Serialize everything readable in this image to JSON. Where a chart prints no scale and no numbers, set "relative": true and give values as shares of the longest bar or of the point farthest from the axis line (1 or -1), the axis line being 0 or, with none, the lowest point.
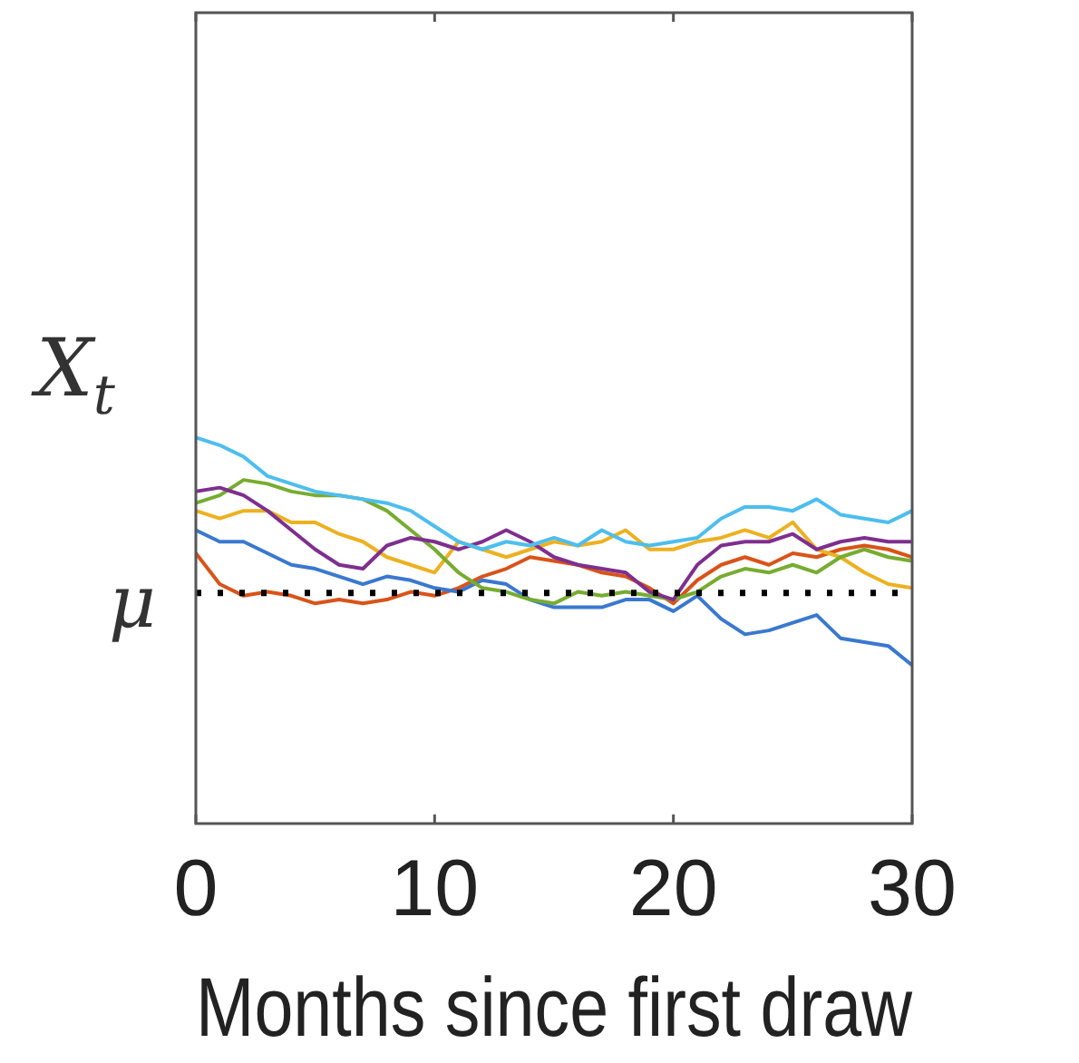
{
  "chart_data": {
    "type": "line",
    "relative": true,
    "ylabel": "X$_{t}$",
    "xlabel": "Months since first draw",
    "xlim": [
      0,
      30
    ],
    "xticks": [
      0,
      10,
      20,
      30
    ],
    "grid": false,
    "legend": false,
    "marker": "none",
    "line_style": "solid",
    "x": [
      0,
      1,
      2,
      3,
      4,
      5,
      6,
      7,
      8,
      9,
      10,
      11,
      12,
      13,
      14,
      15,
      16,
      17,
      18,
      19,
      20,
      21,
      22,
      23,
      24,
      25,
      26,
      27,
      28,
      29,
      30
    ],
    "ref_lines": [
      {
        "axis": "y",
        "value": 0.597,
        "label": "μ",
        "color": "#000000",
        "line_style": "dotted"
      }
    ],
    "series": [
      {
        "color": "#4dbeee",
        "values": [
          1.0,
          0.98,
          0.95,
          0.9,
          0.88,
          0.86,
          0.85,
          0.84,
          0.83,
          0.81,
          0.77,
          0.73,
          0.71,
          0.73,
          0.72,
          0.74,
          0.72,
          0.76,
          0.73,
          0.72,
          0.73,
          0.74,
          0.79,
          0.82,
          0.82,
          0.81,
          0.84,
          0.8,
          0.79,
          0.78,
          0.81
        ]
      },
      {
        "color": "#7e2f8e",
        "values": [
          0.86,
          0.87,
          0.85,
          0.81,
          0.76,
          0.71,
          0.67,
          0.66,
          0.72,
          0.74,
          0.73,
          0.71,
          0.73,
          0.76,
          0.73,
          0.69,
          0.67,
          0.66,
          0.65,
          0.6,
          0.58,
          0.67,
          0.72,
          0.73,
          0.73,
          0.75,
          0.71,
          0.73,
          0.74,
          0.73,
          0.73
        ]
      },
      {
        "color": "#77ac30",
        "values": [
          0.83,
          0.85,
          0.89,
          0.88,
          0.86,
          0.85,
          0.85,
          0.84,
          0.81,
          0.76,
          0.71,
          0.65,
          0.61,
          0.6,
          0.58,
          0.57,
          0.6,
          0.59,
          0.6,
          0.59,
          0.58,
          0.6,
          0.64,
          0.66,
          0.65,
          0.67,
          0.65,
          0.69,
          0.71,
          0.69,
          0.68
        ]
      },
      {
        "color": "#edb120",
        "values": [
          0.81,
          0.79,
          0.81,
          0.81,
          0.78,
          0.78,
          0.75,
          0.73,
          0.69,
          0.67,
          0.65,
          0.73,
          0.71,
          0.69,
          0.71,
          0.73,
          0.72,
          0.73,
          0.76,
          0.71,
          0.71,
          0.73,
          0.74,
          0.76,
          0.74,
          0.78,
          0.71,
          0.69,
          0.65,
          0.62,
          0.61
        ]
      },
      {
        "color": "#3a78d0",
        "values": [
          0.76,
          0.73,
          0.73,
          0.7,
          0.67,
          0.66,
          0.64,
          0.62,
          0.64,
          0.63,
          0.61,
          0.6,
          0.63,
          0.62,
          0.58,
          0.56,
          0.56,
          0.56,
          0.58,
          0.58,
          0.55,
          0.59,
          0.53,
          0.49,
          0.5,
          0.52,
          0.54,
          0.48,
          0.47,
          0.46,
          0.41
        ]
      },
      {
        "color": "#d95319",
        "values": [
          0.7,
          0.62,
          0.59,
          0.6,
          0.59,
          0.57,
          0.58,
          0.57,
          0.58,
          0.6,
          0.59,
          0.61,
          0.64,
          0.66,
          0.69,
          0.68,
          0.67,
          0.65,
          0.64,
          0.61,
          0.57,
          0.63,
          0.67,
          0.69,
          0.67,
          0.7,
          0.69,
          0.71,
          0.72,
          0.71,
          0.69
        ]
      }
    ]
  }
}
